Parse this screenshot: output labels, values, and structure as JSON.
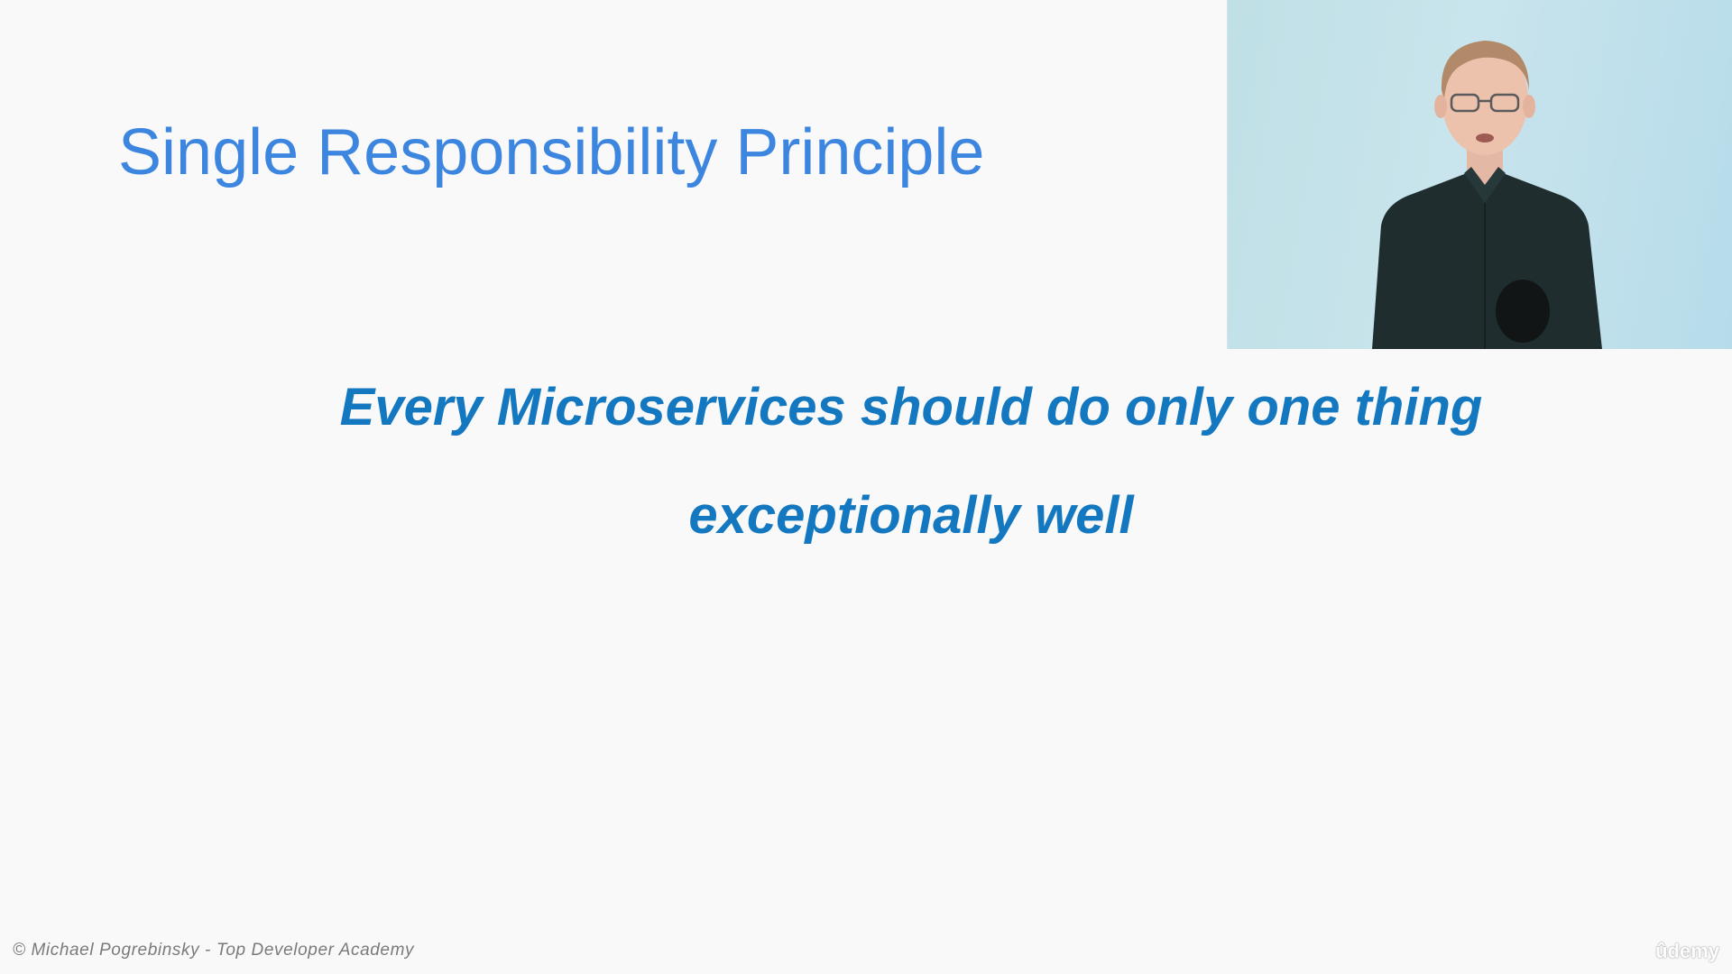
{
  "slide": {
    "title": "Single Responsibility Principle",
    "quote_line1": "Every Microservices should do only one thing",
    "quote_line2": "exceptionally well",
    "footer_credit": "© Michael Pogrebinsky - Top Developer Academy",
    "watermark": "ûdemy"
  },
  "colors": {
    "title": "#3d86e0",
    "quote": "#1478c0",
    "background": "#f9f9f9",
    "video_background": "#c4e2ea",
    "shirt": "#1f2d2f"
  },
  "video": {
    "description_icon": "presenter-video-icon"
  }
}
